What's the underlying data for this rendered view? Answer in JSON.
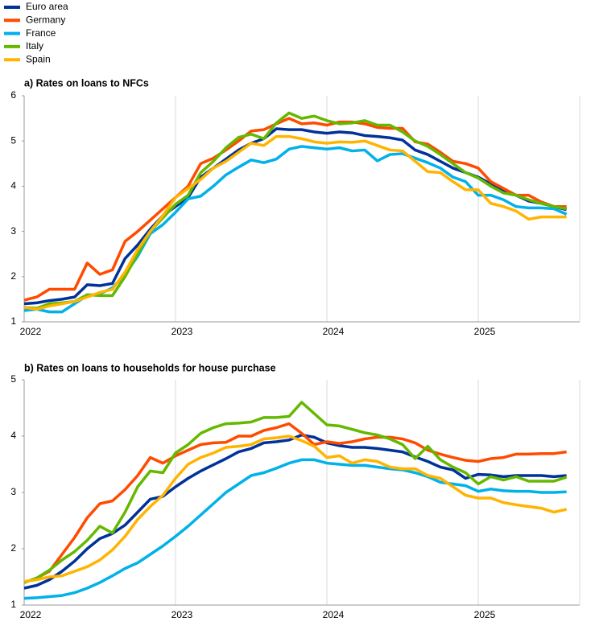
{
  "chart_data": [
    {
      "type": "line",
      "title": "a) Rates on loans to NFCs",
      "categories": [
        "2022",
        null,
        null,
        null,
        null,
        null,
        null,
        null,
        null,
        null,
        null,
        null,
        "2023",
        null,
        null,
        null,
        null,
        null,
        null,
        null,
        null,
        null,
        null,
        null,
        "2024",
        null,
        null,
        null,
        null,
        null,
        null,
        null,
        null,
        null,
        null,
        null,
        "2025",
        null,
        null,
        null,
        null,
        null,
        null,
        null
      ],
      "ylim": [
        1,
        6
      ],
      "yticks": [
        1,
        2,
        3,
        4,
        5,
        6
      ],
      "grid": "x",
      "series": [
        {
          "name": "Euro area",
          "color": "#003299",
          "values": [
            1.4,
            1.42,
            1.47,
            1.5,
            1.55,
            1.82,
            1.8,
            1.85,
            2.4,
            2.7,
            3.05,
            3.35,
            3.55,
            3.75,
            4.2,
            4.4,
            4.6,
            4.8,
            4.95,
            5.05,
            5.27,
            5.25,
            5.25,
            5.2,
            5.17,
            5.2,
            5.18,
            5.12,
            5.1,
            5.07,
            5.02,
            4.8,
            4.7,
            4.55,
            4.4,
            4.3,
            4.2,
            4.05,
            3.9,
            3.8,
            3.67,
            3.62,
            3.55,
            3.48
          ]
        },
        {
          "name": "Germany",
          "color": "#ff4b00",
          "values": [
            1.48,
            1.55,
            1.72,
            1.72,
            1.72,
            2.3,
            2.05,
            2.15,
            2.78,
            3.0,
            3.25,
            3.5,
            3.75,
            4.0,
            4.5,
            4.62,
            4.8,
            5.0,
            5.22,
            5.25,
            5.38,
            5.5,
            5.38,
            5.4,
            5.35,
            5.42,
            5.42,
            5.38,
            5.3,
            5.28,
            5.28,
            4.98,
            4.93,
            4.75,
            4.55,
            4.5,
            4.4,
            4.1,
            3.95,
            3.8,
            3.8,
            3.65,
            3.55,
            3.55
          ]
        },
        {
          "name": "France",
          "color": "#00b1ea",
          "values": [
            1.25,
            1.28,
            1.22,
            1.22,
            1.4,
            1.58,
            1.62,
            1.75,
            2.05,
            2.45,
            2.95,
            3.15,
            3.42,
            3.72,
            3.78,
            4.0,
            4.25,
            4.42,
            4.58,
            4.52,
            4.6,
            4.82,
            4.88,
            4.85,
            4.82,
            4.85,
            4.78,
            4.8,
            4.56,
            4.7,
            4.72,
            4.62,
            4.52,
            4.4,
            4.2,
            4.1,
            3.8,
            3.8,
            3.7,
            3.55,
            3.52,
            3.52,
            3.5,
            3.38
          ]
        },
        {
          "name": "Italy",
          "color": "#65b800",
          "values": [
            1.32,
            1.3,
            1.4,
            1.42,
            1.45,
            1.6,
            1.58,
            1.58,
            2.0,
            2.5,
            3.0,
            3.3,
            3.6,
            3.8,
            4.3,
            4.55,
            4.85,
            5.08,
            5.15,
            5.05,
            5.4,
            5.62,
            5.5,
            5.55,
            5.45,
            5.38,
            5.4,
            5.45,
            5.35,
            5.35,
            5.2,
            5.0,
            4.88,
            4.7,
            4.5,
            4.3,
            4.18,
            4.0,
            3.85,
            3.8,
            3.7,
            3.62,
            3.55,
            3.5
          ]
        },
        {
          "name": "Spain",
          "color": "#ffb400",
          "values": [
            1.32,
            1.28,
            1.35,
            1.4,
            1.45,
            1.55,
            1.65,
            1.72,
            2.1,
            2.6,
            3.0,
            3.35,
            3.75,
            3.95,
            4.15,
            4.4,
            4.55,
            4.75,
            4.95,
            4.9,
            5.1,
            5.1,
            5.05,
            4.98,
            4.95,
            4.98,
            4.97,
            5.0,
            4.9,
            4.8,
            4.78,
            4.55,
            4.32,
            4.3,
            4.1,
            3.92,
            3.92,
            3.62,
            3.55,
            3.45,
            3.27,
            3.32,
            3.32,
            3.32
          ]
        }
      ]
    },
    {
      "type": "line",
      "title": "b) Rates on loans to households for house purchase",
      "categories": [
        "2022",
        null,
        null,
        null,
        null,
        null,
        null,
        null,
        null,
        null,
        null,
        null,
        "2023",
        null,
        null,
        null,
        null,
        null,
        null,
        null,
        null,
        null,
        null,
        null,
        "2024",
        null,
        null,
        null,
        null,
        null,
        null,
        null,
        null,
        null,
        null,
        null,
        "2025",
        null,
        null,
        null,
        null,
        null,
        null,
        null
      ],
      "ylim": [
        1,
        5
      ],
      "yticks": [
        1,
        2,
        3,
        4,
        5
      ],
      "grid": "x",
      "series": [
        {
          "color": "#003299",
          "values": [
            1.3,
            1.35,
            1.45,
            1.6,
            1.78,
            2.0,
            2.18,
            2.27,
            2.42,
            2.65,
            2.88,
            2.93,
            3.1,
            3.25,
            3.38,
            3.49,
            3.6,
            3.72,
            3.78,
            3.88,
            3.9,
            3.93,
            4.02,
            3.98,
            3.88,
            3.83,
            3.8,
            3.8,
            3.78,
            3.75,
            3.72,
            3.63,
            3.55,
            3.45,
            3.4,
            3.25,
            3.32,
            3.31,
            3.28,
            3.3,
            3.3,
            3.3,
            3.28,
            3.3
          ]
        },
        {
          "color": "#ff4b00",
          "values": [
            1.4,
            1.48,
            1.6,
            1.9,
            2.2,
            2.55,
            2.8,
            2.85,
            3.05,
            3.3,
            3.62,
            3.52,
            3.65,
            3.75,
            3.85,
            3.88,
            3.89,
            4.0,
            4.0,
            4.1,
            4.15,
            4.22,
            4.05,
            3.85,
            3.9,
            3.87,
            3.9,
            3.95,
            3.98,
            3.98,
            3.95,
            3.88,
            3.75,
            3.68,
            3.62,
            3.57,
            3.55,
            3.6,
            3.62,
            3.68,
            3.68,
            3.69,
            3.69,
            3.72
          ]
        },
        {
          "color": "#00b1ea",
          "values": [
            1.12,
            1.13,
            1.15,
            1.17,
            1.22,
            1.3,
            1.4,
            1.52,
            1.65,
            1.75,
            1.9,
            2.05,
            2.22,
            2.4,
            2.6,
            2.8,
            3.0,
            3.15,
            3.3,
            3.35,
            3.43,
            3.52,
            3.58,
            3.58,
            3.52,
            3.5,
            3.48,
            3.48,
            3.45,
            3.42,
            3.4,
            3.35,
            3.28,
            3.18,
            3.15,
            3.12,
            3.02,
            3.06,
            3.03,
            3.02,
            3.02,
            3.0,
            3.0,
            3.01
          ]
        },
        {
          "color": "#65b800",
          "values": [
            1.4,
            1.48,
            1.62,
            1.8,
            1.95,
            2.15,
            2.4,
            2.28,
            2.65,
            3.1,
            3.38,
            3.35,
            3.7,
            3.85,
            4.05,
            4.15,
            4.22,
            4.23,
            4.25,
            4.33,
            4.33,
            4.35,
            4.6,
            4.4,
            4.2,
            4.18,
            4.12,
            4.06,
            4.02,
            3.95,
            3.85,
            3.6,
            3.82,
            3.58,
            3.45,
            3.35,
            3.15,
            3.28,
            3.22,
            3.28,
            3.2,
            3.2,
            3.2,
            3.27
          ]
        },
        {
          "color": "#ffb400",
          "values": [
            1.42,
            1.45,
            1.5,
            1.52,
            1.6,
            1.68,
            1.8,
            1.98,
            2.22,
            2.52,
            2.75,
            2.95,
            3.25,
            3.5,
            3.62,
            3.7,
            3.8,
            3.82,
            3.85,
            3.95,
            3.97,
            4.0,
            3.92,
            3.82,
            3.62,
            3.65,
            3.52,
            3.58,
            3.55,
            3.45,
            3.42,
            3.42,
            3.3,
            3.25,
            3.1,
            2.95,
            2.9,
            2.9,
            2.82,
            2.78,
            2.75,
            2.72,
            2.65,
            2.7
          ]
        }
      ]
    }
  ]
}
